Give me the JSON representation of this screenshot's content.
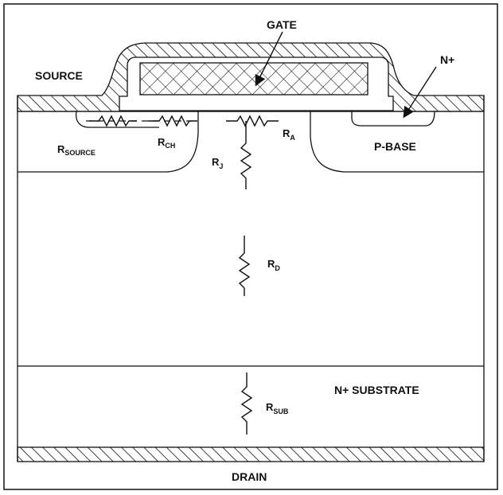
{
  "labels": {
    "gate": "GATE",
    "source": "SOURCE",
    "n_plus": "N+",
    "p_base": "P-BASE",
    "n_substrate": "N+ SUBSTRATE",
    "drain": "DRAIN"
  },
  "resistors": {
    "source": {
      "main": "R",
      "sub": "SOURCE"
    },
    "channel": {
      "main": "R",
      "sub": "CH"
    },
    "accumulation": {
      "main": "R",
      "sub": "A"
    },
    "jfet": {
      "main": "R",
      "sub": "J"
    },
    "drift": {
      "main": "R",
      "sub": "D"
    },
    "substrate": {
      "main": "R",
      "sub": "SUB"
    }
  },
  "colors": {
    "line": "#111111",
    "background": "#ffffff"
  }
}
